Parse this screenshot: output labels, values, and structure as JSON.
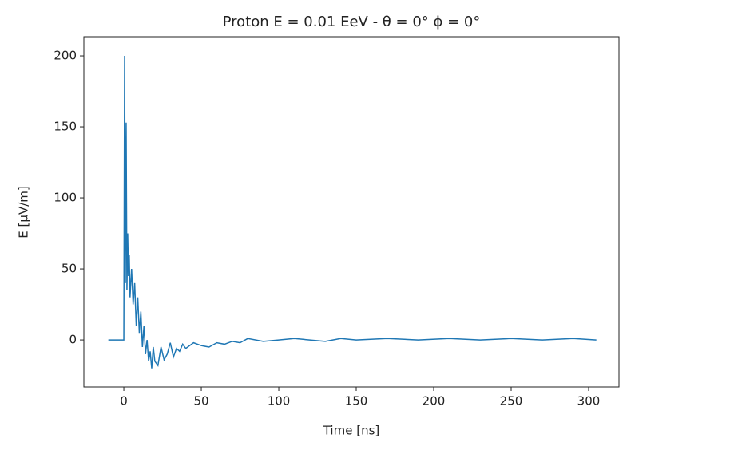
{
  "chart_data": {
    "type": "line",
    "title": "Proton  E = 0.01 EeV - θ = 0° ϕ = 0°",
    "xlabel": "Time [ns]",
    "ylabel": "E [μV/m]",
    "x": [
      -10,
      -5,
      0,
      0.5,
      1,
      1.5,
      2,
      2.5,
      3,
      3.5,
      4,
      5,
      6,
      7,
      8,
      9,
      10,
      11,
      12,
      13,
      14,
      15,
      16,
      17,
      18,
      19,
      20,
      22,
      24,
      26,
      28,
      30,
      32,
      34,
      36,
      38,
      40,
      45,
      50,
      55,
      60,
      65,
      70,
      75,
      80,
      90,
      100,
      110,
      120,
      130,
      140,
      150,
      170,
      190,
      210,
      230,
      250,
      270,
      290,
      305
    ],
    "series": [
      {
        "color": "#1f77b4",
        "values": [
          0,
          0,
          0,
          200,
          40,
          153,
          35,
          75,
          45,
          60,
          30,
          50,
          25,
          40,
          10,
          30,
          5,
          20,
          -5,
          10,
          -10,
          0,
          -15,
          -8,
          -20,
          -5,
          -15,
          -18,
          -5,
          -14,
          -10,
          -2,
          -12,
          -6,
          -8,
          -3,
          -6,
          -2,
          -4,
          -5,
          -2,
          -3,
          -1,
          -2,
          1,
          -1,
          0,
          1,
          0,
          -1,
          1,
          0,
          1,
          0,
          1,
          0,
          1,
          0,
          1,
          0
        ]
      }
    ],
    "xlim": [
      -25.8,
      319.6
    ],
    "ylim": [
      -33.1,
      213.5
    ],
    "xticks": [
      0,
      50,
      100,
      150,
      200,
      250,
      300
    ],
    "yticks": [
      0,
      50,
      100,
      150,
      200
    ]
  }
}
